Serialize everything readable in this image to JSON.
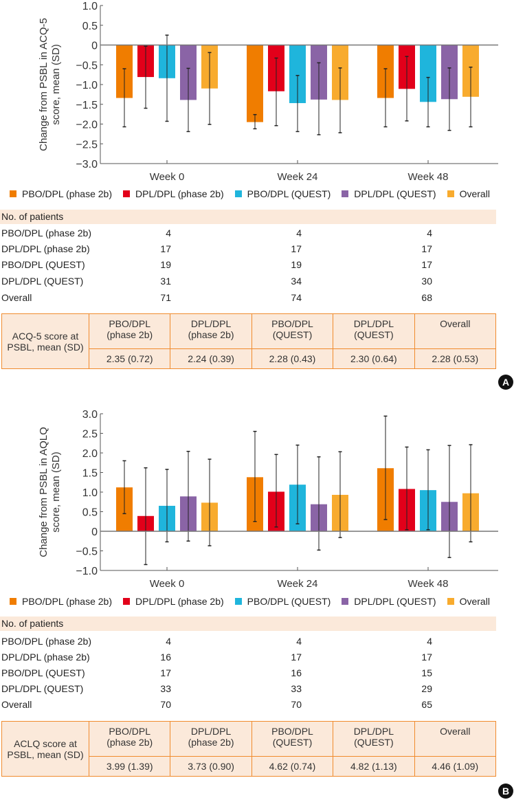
{
  "series_names": [
    "PBO/DPL (phase 2b)",
    "DPL/DPL (phase 2b)",
    "PBO/DPL (QUEST)",
    "DPL/DPL (QUEST)",
    "Overall"
  ],
  "series_colors": [
    "#f07d00",
    "#e2001a",
    "#1fb5dc",
    "#8a64a6",
    "#f8ab2e"
  ],
  "chart_data": [
    {
      "type": "bar",
      "panel": "A",
      "ylabel": [
        "Change from PSBL in ACQ-5",
        "score, mean (SD)"
      ],
      "categories": [
        "Week 0",
        "Week 24",
        "Week 48"
      ],
      "ylim": [
        -3.0,
        1.0
      ],
      "yticks": [
        "1.0",
        "0.5",
        "0",
        "-0.5",
        "-1.0",
        "-1.5",
        "-2.0",
        "-2.5",
        "-3.0"
      ],
      "series": [
        {
          "name": "PBO/DPL (phase 2b)",
          "values": [
            -1.34,
            -1.95,
            -1.34
          ],
          "err_high": [
            -0.6,
            -1.76,
            -0.6
          ],
          "err_low": [
            -2.07,
            -2.12,
            -2.07
          ]
        },
        {
          "name": "DPL/DPL (phase 2b)",
          "values": [
            -0.81,
            -1.17,
            -1.11
          ],
          "err_high": [
            -0.03,
            -0.33,
            -0.29
          ],
          "err_low": [
            -1.6,
            -2.04,
            -1.92
          ]
        },
        {
          "name": "PBO/DPL (QUEST)",
          "values": [
            -0.84,
            -1.47,
            -1.44
          ],
          "err_high": [
            0.25,
            -0.77,
            -0.82
          ],
          "err_low": [
            -1.93,
            -2.19,
            -2.07
          ]
        },
        {
          "name": "DPL/DPL (QUEST)",
          "values": [
            -1.39,
            -1.38,
            -1.37
          ],
          "err_high": [
            -0.59,
            -0.45,
            -0.58
          ],
          "err_low": [
            -2.19,
            -2.27,
            -2.16
          ]
        },
        {
          "name": "Overall",
          "values": [
            -1.1,
            -1.39,
            -1.31
          ],
          "err_high": [
            -0.19,
            -0.58,
            -0.56
          ],
          "err_low": [
            -2.01,
            -2.22,
            -2.07
          ]
        }
      ]
    },
    {
      "type": "bar",
      "panel": "B",
      "ylabel": [
        "Change from PSBL in AQLQ",
        "score, mean (SD)"
      ],
      "categories": [
        "Week 0",
        "Week 24",
        "Week 48"
      ],
      "ylim": [
        -1.0,
        3.0
      ],
      "yticks": [
        "3.0",
        "2.5",
        "2.0",
        "1.5",
        "1.0",
        "0.5",
        "0",
        "-0.5",
        "-1.0"
      ],
      "series": [
        {
          "name": "PBO/DPL (phase 2b)",
          "values": [
            1.12,
            1.38,
            1.61
          ],
          "err_high": [
            1.8,
            2.55,
            2.94
          ],
          "err_low": [
            0.45,
            0.25,
            0.3
          ]
        },
        {
          "name": "DPL/DPL (phase 2b)",
          "values": [
            0.39,
            1.01,
            1.08
          ],
          "err_high": [
            1.62,
            1.96,
            2.15
          ],
          "err_low": [
            -0.85,
            0.11,
            0.04
          ]
        },
        {
          "name": "PBO/DPL (QUEST)",
          "values": [
            0.65,
            1.19,
            1.05
          ],
          "err_high": [
            1.58,
            2.2,
            2.08
          ],
          "err_low": [
            -0.27,
            0.19,
            0.04
          ]
        },
        {
          "name": "DPL/DPL (QUEST)",
          "values": [
            0.89,
            0.69,
            0.75
          ],
          "err_high": [
            2.04,
            1.9,
            2.19
          ],
          "err_low": [
            -0.25,
            -0.48,
            -0.67
          ]
        },
        {
          "name": "Overall",
          "values": [
            0.73,
            0.93,
            0.97
          ],
          "err_high": [
            1.84,
            2.03,
            2.21
          ],
          "err_low": [
            -0.37,
            -0.16,
            -0.27
          ]
        }
      ]
    }
  ],
  "panels": [
    {
      "badge": "A",
      "patients_title": "No. of patients",
      "patients": [
        [
          "PBO/DPL (phase 2b)",
          "4",
          "4",
          "4"
        ],
        [
          "DPL/DPL (phase 2b)",
          "17",
          "17",
          "17"
        ],
        [
          "PBO/DPL (QUEST)",
          "19",
          "19",
          "17"
        ],
        [
          "DPL/DPL (QUEST)",
          "31",
          "34",
          "30"
        ],
        [
          "Overall",
          "71",
          "74",
          "68"
        ]
      ],
      "score_label": [
        "ACQ-5 score at",
        "PSBL, mean (SD)"
      ],
      "score_headers": [
        [
          "PBO/DPL",
          "(phase 2b)"
        ],
        [
          "DPL/DPL",
          "(phase 2b)"
        ],
        [
          "PBO/DPL",
          "(QUEST)"
        ],
        [
          "DPL/DPL",
          "(QUEST)"
        ],
        [
          "Overall",
          ""
        ]
      ],
      "score_values": [
        "2.35 (0.72)",
        "2.24 (0.39)",
        "2.28 (0.43)",
        "2.30 (0.64)",
        "2.28 (0.53)"
      ]
    },
    {
      "badge": "B",
      "patients_title": "No. of patients",
      "patients": [
        [
          "PBO/DPL (phase 2b)",
          "4",
          "4",
          "4"
        ],
        [
          "DPL/DPL (phase 2b)",
          "16",
          "17",
          "17"
        ],
        [
          "PBO/DPL (QUEST)",
          "17",
          "16",
          "15"
        ],
        [
          "DPL/DPL (QUEST)",
          "33",
          "33",
          "29"
        ],
        [
          "Overall",
          "70",
          "70",
          "65"
        ]
      ],
      "score_label": [
        "ACLQ score at",
        "PSBL, mean (SD)"
      ],
      "score_headers": [
        [
          "PBO/DPL",
          "(phase 2b)"
        ],
        [
          "DPL/DPL",
          "(phase 2b)"
        ],
        [
          "PBO/DPL",
          "(QUEST)"
        ],
        [
          "DPL/DPL",
          "(QUEST)"
        ],
        [
          "Overall",
          ""
        ]
      ],
      "score_values": [
        "3.99 (1.39)",
        "3.73 (0.90)",
        "4.62 (0.74)",
        "4.82 (1.13)",
        "4.46 (1.09)"
      ]
    }
  ]
}
